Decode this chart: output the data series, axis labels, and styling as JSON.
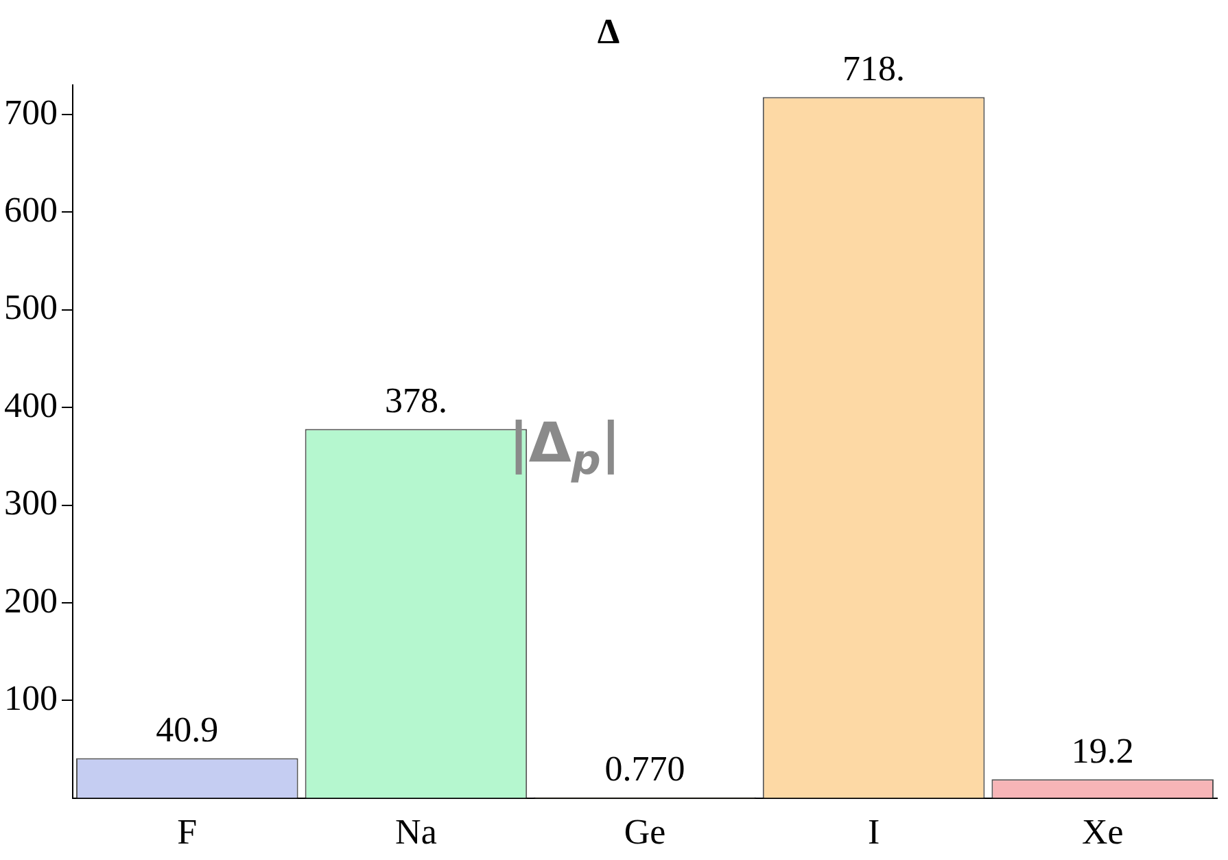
{
  "chart_data": {
    "type": "bar",
    "title": "Δ",
    "categories": [
      "F",
      "Na",
      "Ge",
      "I",
      "Xe"
    ],
    "values": [
      40.9,
      378,
      0.77,
      718,
      19.2
    ],
    "colors": [
      "#c5cdf2",
      "#b5f7cf",
      "#fbeec4",
      "#fdd9a5",
      "#f7b5b7"
    ],
    "value_labels": [
      "40.9",
      "378.",
      "0.770",
      "718.",
      "19.2"
    ],
    "annotations": [
      "|Δ$_{p}$|"
    ],
    "ylim": [
      0,
      730
    ],
    "yticks": [
      100,
      200,
      300,
      400,
      500,
      600,
      700
    ],
    "grid": false,
    "legend": false
  }
}
